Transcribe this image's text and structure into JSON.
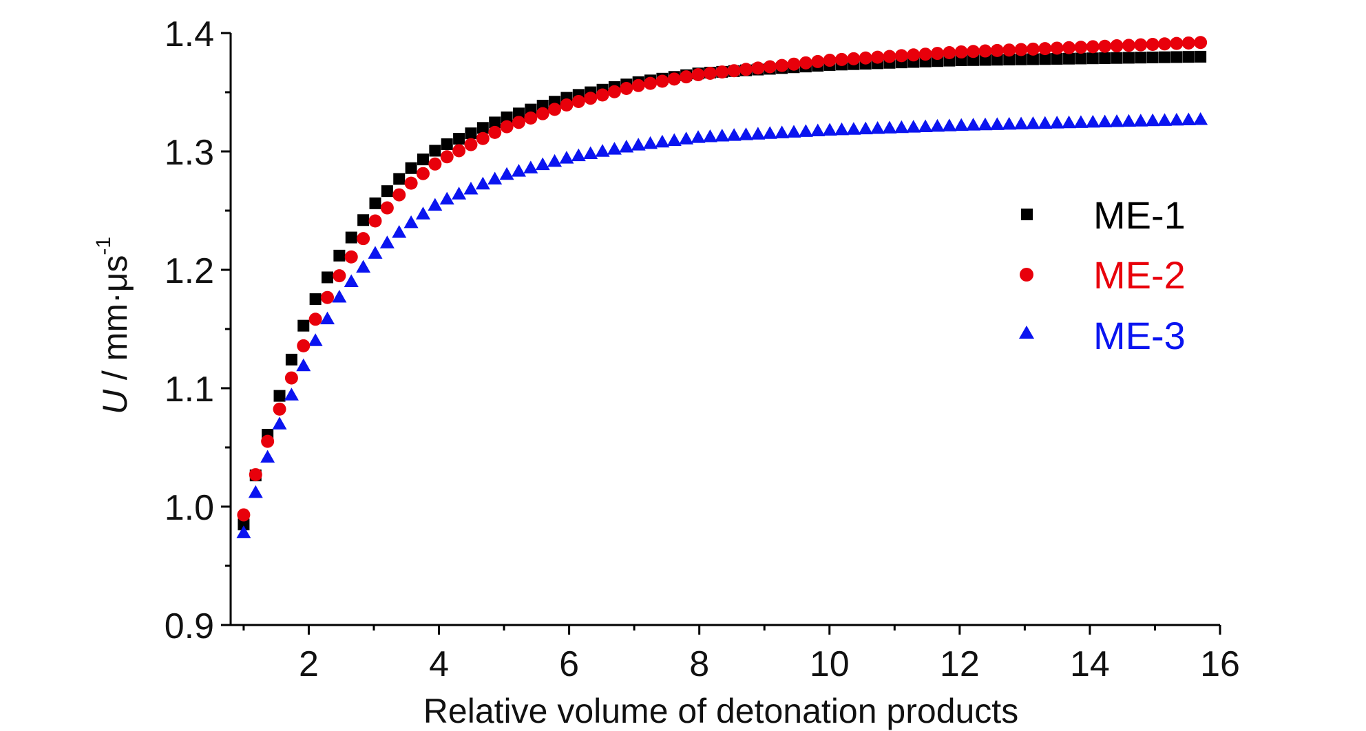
{
  "chart_data": {
    "type": "scatter",
    "xlabel": "Relative volume of detonation products",
    "ylabel": {
      "symbol": "U",
      "unit": " / mm·μs",
      "exponent": "-1"
    },
    "xlim": [
      0.8,
      16
    ],
    "ylim": [
      0.9,
      1.4
    ],
    "xticks": [
      "2",
      "4",
      "6",
      "8",
      "10",
      "12",
      "14",
      "16"
    ],
    "yticks": [
      "0.9",
      "1.0",
      "1.1",
      "1.2",
      "1.3",
      "1.4"
    ],
    "x_start": 1.0,
    "x_end": 15.7,
    "point_count": 81,
    "legend_position": "right",
    "series": [
      {
        "name": "ME-1",
        "marker": "square",
        "color": "#000000",
        "anchors_x": [
          1.0,
          1.2,
          1.5,
          1.8,
          2.0,
          2.5,
          3.0,
          3.5,
          4.0,
          5.0,
          6.0,
          7.0,
          8.0,
          10.0,
          12.0,
          15.7
        ],
        "anchors_y": [
          0.985,
          1.03,
          1.085,
          1.135,
          1.165,
          1.215,
          1.255,
          1.283,
          1.303,
          1.328,
          1.346,
          1.358,
          1.366,
          1.373,
          1.377,
          1.38
        ]
      },
      {
        "name": "ME-2",
        "marker": "circle",
        "color": "#e8000b",
        "anchors_x": [
          1.0,
          1.2,
          1.5,
          1.8,
          2.0,
          2.5,
          3.0,
          3.5,
          4.0,
          5.0,
          6.0,
          7.0,
          8.0,
          10.0,
          12.0,
          15.7
        ],
        "anchors_y": [
          0.993,
          1.03,
          1.075,
          1.118,
          1.148,
          1.198,
          1.24,
          1.27,
          1.292,
          1.32,
          1.34,
          1.355,
          1.365,
          1.377,
          1.384,
          1.392
        ]
      },
      {
        "name": "ME-3",
        "marker": "triangle",
        "color": "#0a14f0",
        "anchors_x": [
          1.0,
          1.2,
          1.5,
          1.8,
          2.0,
          2.5,
          3.0,
          3.5,
          4.0,
          5.0,
          6.0,
          7.0,
          8.0,
          10.0,
          12.0,
          15.7
        ],
        "anchors_y": [
          0.978,
          1.015,
          1.063,
          1.103,
          1.13,
          1.18,
          1.213,
          1.237,
          1.257,
          1.28,
          1.295,
          1.305,
          1.312,
          1.318,
          1.322,
          1.327
        ]
      }
    ]
  }
}
